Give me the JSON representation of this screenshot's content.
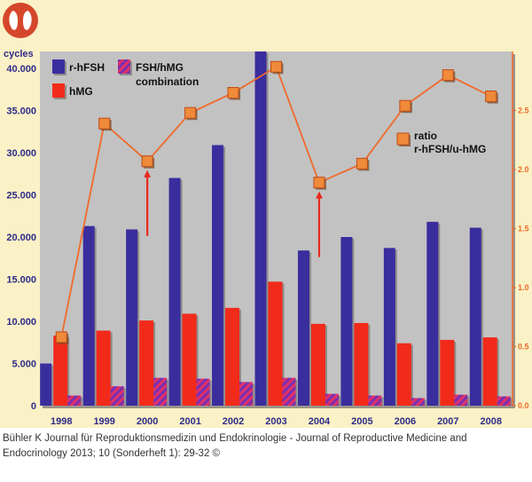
{
  "caption": "Bühler K Journal für Reproduktionsmedizin und Endokrinologie - Journal of Reproductive Medicine and Endocrinology 2013; 10 (Sonderheft 1): 29-32 ©",
  "chart_data": {
    "type": "bar+line",
    "title": "",
    "ylabel_left": "cycles",
    "ylim_left": [
      0,
      42000
    ],
    "yticks_left": [
      "0",
      "5.000",
      "10.000",
      "15.000",
      "20.000",
      "25.000",
      "30.000",
      "35.000",
      "40.000"
    ],
    "ylim_right": [
      0,
      3.0
    ],
    "yticks_right": [
      "0.0",
      "0.5",
      "1.0",
      "1.5",
      "2.0",
      "2.5"
    ],
    "categories": [
      "1998",
      "1999",
      "2000",
      "2001",
      "2002",
      "2003",
      "2004",
      "2005",
      "2006",
      "2007",
      "2008"
    ],
    "series": [
      {
        "name": "r-hFSH",
        "type": "bar",
        "color": "#3a2d9e",
        "values": [
          5000,
          21300,
          20900,
          27000,
          30900,
          42000,
          18400,
          20000,
          18700,
          21800,
          21100
        ]
      },
      {
        "name": "hMG",
        "type": "bar",
        "color": "#f22a1a",
        "values": [
          8300,
          8900,
          10100,
          10900,
          11600,
          14700,
          9700,
          9800,
          7400,
          7800,
          8100
        ]
      },
      {
        "name": "FSH/hMG combination",
        "type": "bar",
        "color": "#b03a8a",
        "values": [
          1200,
          2300,
          3300,
          3200,
          2800,
          3300,
          1400,
          1200,
          900,
          1300,
          1100
        ]
      },
      {
        "name": "ratio r-hFSH/u-hMG",
        "type": "line",
        "axis": "right",
        "color": "#ef6a2a",
        "values": [
          0.58,
          2.39,
          2.07,
          2.48,
          2.65,
          2.87,
          1.89,
          2.05,
          2.54,
          2.8,
          2.62
        ]
      }
    ],
    "legend": [
      {
        "label": "r-hFSH",
        "color": "#3a2d9e"
      },
      {
        "label": "FSH/hMG",
        "label2": "combination",
        "color": "#b03a8a"
      },
      {
        "label": "hMG",
        "color": "#f22a1a"
      }
    ],
    "ratio_label": [
      "ratio",
      "r-hFSH/u-hMG"
    ],
    "annotations": [
      {
        "type": "arrow",
        "category": "2000",
        "color": "#e8291c"
      },
      {
        "type": "arrow",
        "category": "2004",
        "color": "#e8291c"
      }
    ],
    "grid": false
  },
  "colors": {
    "background": "#fbf1c6",
    "plot_area": "#c2c2c2",
    "axis": "#ef6a2a"
  },
  "logo_icon": "ovary-logo-icon"
}
